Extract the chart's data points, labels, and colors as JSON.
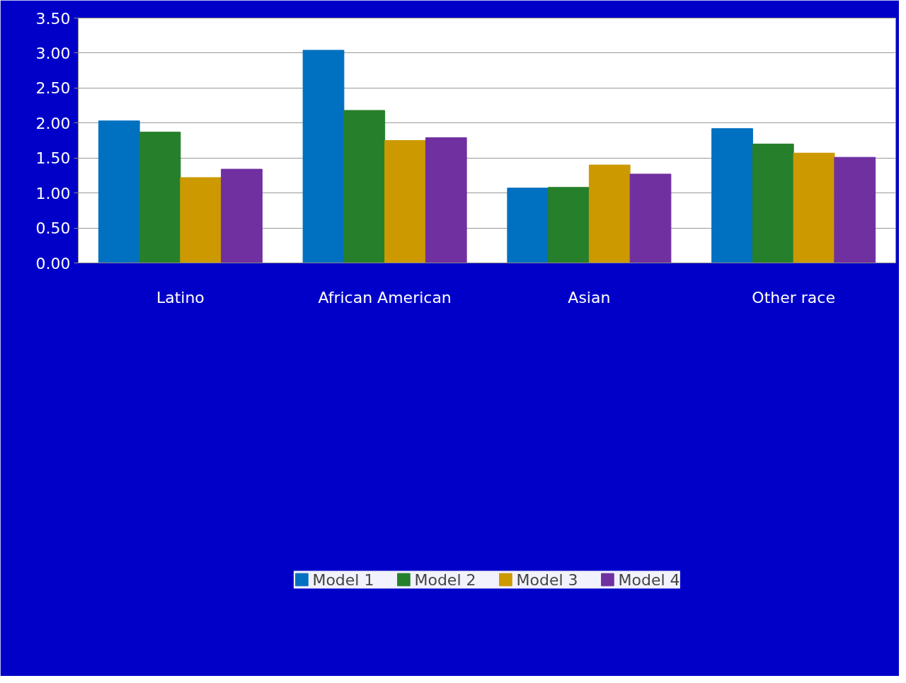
{
  "chart_data": {
    "type": "bar",
    "categories": [
      "Latino",
      "African American",
      "Asian",
      "Other race"
    ],
    "series": [
      {
        "name": "Model 1",
        "color": "#0070c0",
        "values": [
          2.03,
          3.04,
          1.07,
          1.92
        ]
      },
      {
        "name": "Model 2",
        "color": "#267f2a",
        "values": [
          1.87,
          2.18,
          1.08,
          1.7
        ]
      },
      {
        "name": "Model 3",
        "color": "#cc9900",
        "values": [
          1.22,
          1.75,
          1.4,
          1.57
        ]
      },
      {
        "name": "Model 4",
        "color": "#7030a0",
        "values": [
          1.34,
          1.79,
          1.27,
          1.51
        ]
      }
    ],
    "ylim": [
      0,
      3.5
    ],
    "yticks": [
      {
        "value": 0,
        "label": "0.00"
      },
      {
        "value": 0.5,
        "label": "0.50"
      },
      {
        "value": 1,
        "label": "1.00"
      },
      {
        "value": 1.5,
        "label": "1.50"
      },
      {
        "value": 2,
        "label": "2.00"
      },
      {
        "value": 2.5,
        "label": "2.50"
      },
      {
        "value": 3,
        "label": "3.00"
      },
      {
        "value": 3.5,
        "label": "3.50"
      }
    ],
    "grid": "y",
    "legend": "bottom"
  }
}
